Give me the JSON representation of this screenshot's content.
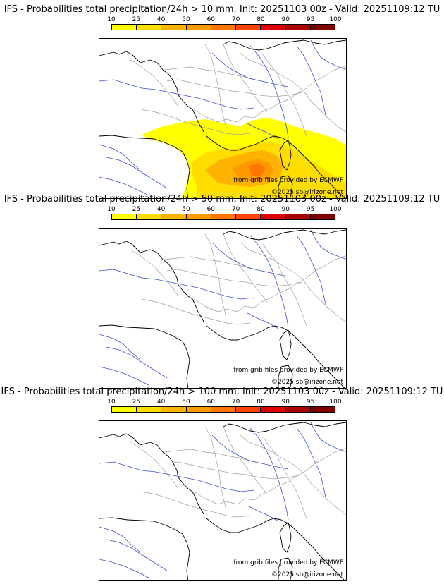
{
  "legend": {
    "ticks": [
      "10",
      "25",
      "40",
      "50",
      "60",
      "70",
      "80",
      "90",
      "95",
      "100"
    ],
    "colors": [
      "#ffff00",
      "#ffdd00",
      "#ffb300",
      "#ff9900",
      "#ff7700",
      "#ff4400",
      "#dd0000",
      "#aa0000",
      "#800000",
      "#5a0000"
    ]
  },
  "panels": [
    {
      "title": "IFS - Probabilities total precipitation/24h > 10 mm, Init: 20251103 00z - Valid: 20251109:12 TU",
      "source": "from grib files provided by ECMWF",
      "copyright": "©2025 sb@irizone.net",
      "has_precip": true
    },
    {
      "title": "IFS - Probabilities total precipitation/24h > 50 mm, Init: 20251103 00z - Valid: 20251109:12 TU",
      "source": "from grib files provided by ECMWF",
      "copyright": "©2025 sb@irizone.net",
      "has_precip": false
    },
    {
      "title": "IFS - Probabilities total precipitation/24h > 100 mm, Init: 20251103 00z - Valid: 20251109:12 TU",
      "source": "from grib files provided by ECMWF",
      "copyright": "©2025 sb@irizone.net",
      "has_precip": false
    }
  ]
}
